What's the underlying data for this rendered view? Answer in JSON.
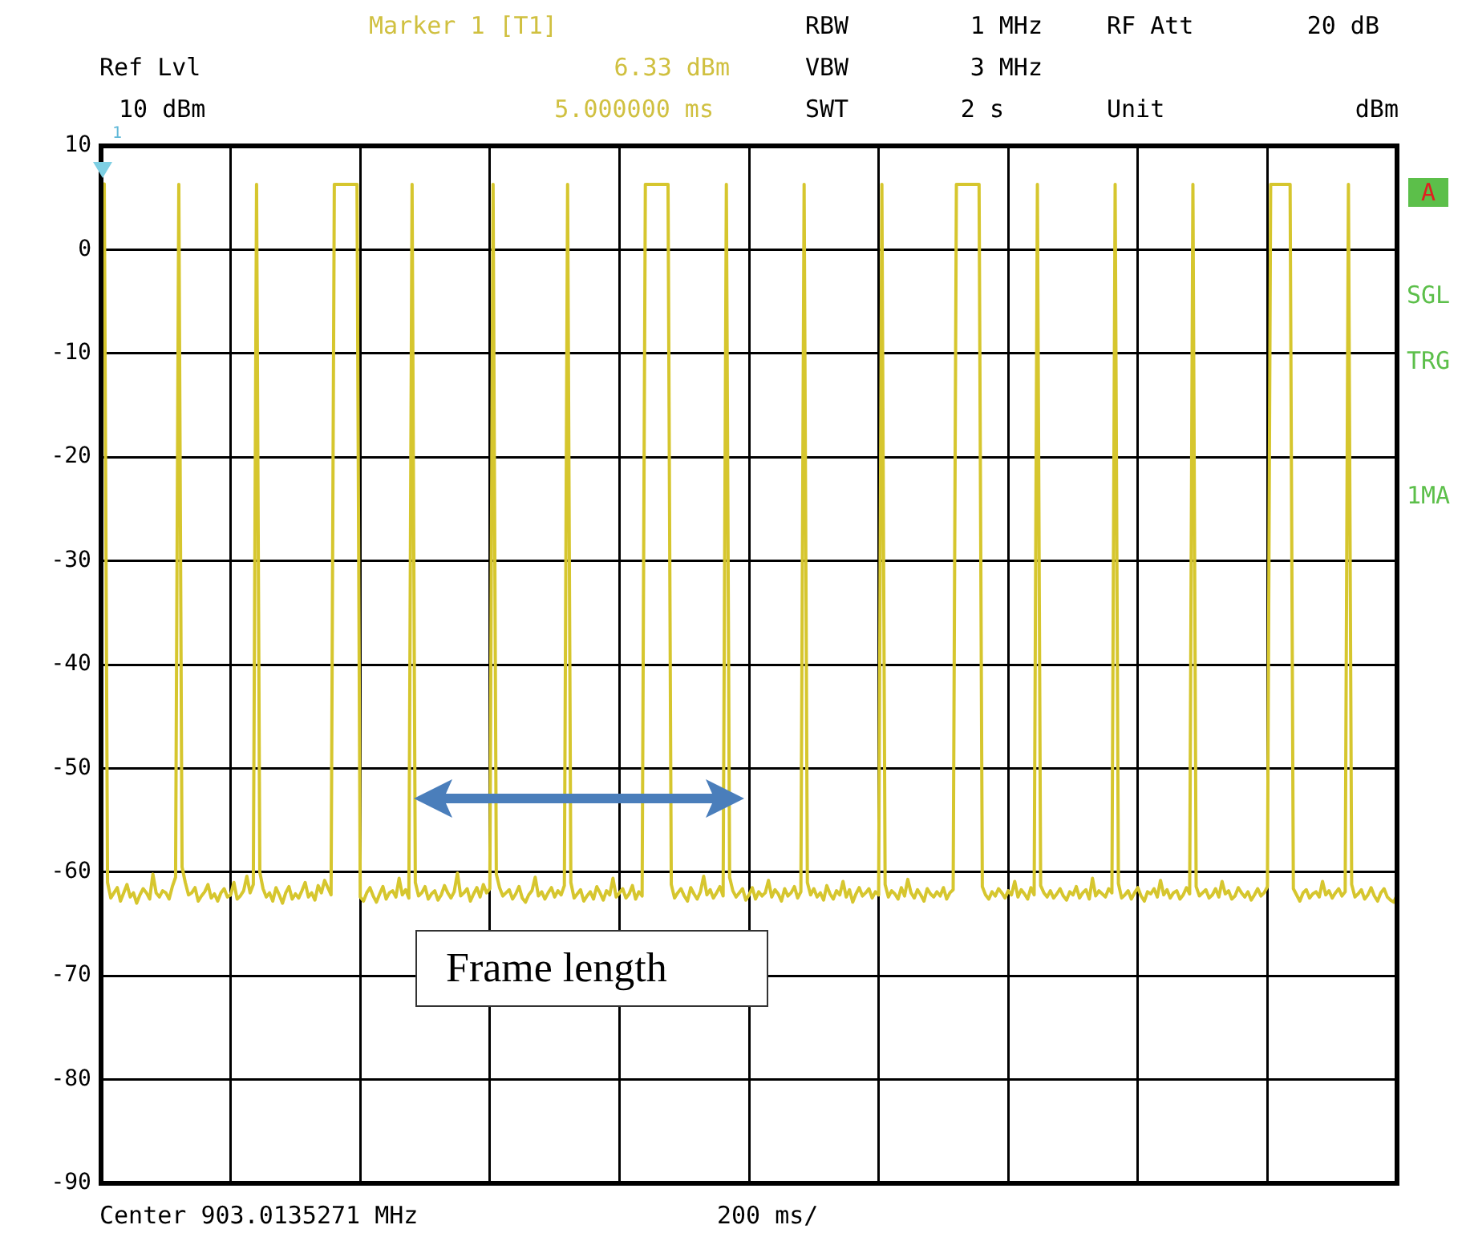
{
  "chart_data": {
    "type": "line",
    "color": "#d6c62e",
    "ylim": [
      -90,
      10
    ],
    "yticks": [
      10,
      0,
      -10,
      -20,
      -30,
      -40,
      -50,
      -60,
      -70,
      -80,
      -90
    ],
    "grid": true,
    "legend": false,
    "marker": "none",
    "line_style": "solid",
    "tick_labels": "y",
    "annotations": [
      "Marker 1 [T1]",
      "6.33 dBm",
      "5.000000 ms",
      "Ref Lvl",
      "10 dBm",
      "RBW",
      "1 MHz",
      "VBW",
      "3 MHz",
      "SWT",
      "2 s",
      "RF Att",
      "20 dB",
      "Unit",
      "dBm",
      "A",
      "SGL",
      "TRG",
      "1MA",
      "Center 903.0135271 MHz",
      "200 ms/",
      "Frame length",
      "1"
    ],
    "categories": [
      null,
      null,
      null,
      null,
      null,
      null,
      null,
      null,
      null,
      null,
      null,
      null,
      null,
      null,
      null,
      null,
      null,
      null,
      null,
      null,
      null,
      null,
      null,
      null,
      null,
      null,
      null,
      null,
      null,
      null,
      null,
      null,
      null,
      null,
      null,
      null,
      null,
      null,
      null,
      null,
      null,
      null,
      null,
      null,
      null,
      null,
      null,
      null,
      null,
      null,
      null,
      null,
      null,
      null,
      null,
      null,
      null,
      null,
      null,
      null,
      null,
      null,
      null,
      null,
      null,
      null,
      null,
      null,
      null,
      null,
      null,
      null,
      null,
      null,
      null,
      null,
      null,
      null,
      null,
      null,
      null,
      null,
      null,
      null,
      null,
      null,
      null,
      null,
      null,
      null,
      null,
      null,
      null,
      null,
      null,
      null,
      null,
      null,
      null,
      null,
      null,
      null,
      null,
      null,
      null,
      null,
      null,
      null,
      null,
      null,
      null,
      null,
      null,
      null,
      null,
      null,
      null,
      null,
      null,
      null,
      null,
      null,
      null,
      null,
      null,
      null,
      null,
      null,
      null,
      null,
      null,
      null,
      null,
      null,
      null,
      null,
      null,
      null,
      null,
      null,
      null,
      null,
      null,
      null,
      null,
      null,
      null,
      null,
      null,
      null,
      null,
      null,
      null,
      null,
      null,
      null,
      null,
      null,
      null,
      null,
      null,
      null,
      null,
      null,
      null,
      null,
      null,
      null,
      null,
      null,
      null,
      null,
      null,
      null,
      null,
      null,
      null,
      null,
      null,
      null,
      null,
      null,
      null,
      null,
      null,
      null,
      null,
      null,
      null,
      null,
      null,
      null,
      null,
      null,
      null,
      null,
      null,
      null,
      null,
      null,
      null,
      null,
      null,
      null,
      null,
      null,
      null,
      null,
      null,
      null,
      null,
      null,
      null,
      null,
      null,
      null,
      null,
      null,
      null,
      null,
      null,
      null,
      null,
      null,
      null,
      null,
      null,
      null,
      null,
      null,
      null,
      null,
      null,
      null,
      null,
      null,
      null,
      null,
      null,
      null,
      null,
      null,
      null,
      null,
      null,
      null,
      null,
      null,
      null,
      null,
      null,
      null,
      null,
      null,
      null,
      null,
      null,
      null,
      null,
      null,
      null,
      null,
      null,
      null,
      null,
      null,
      null,
      null,
      null,
      null,
      null,
      null,
      null,
      null,
      null,
      null,
      null,
      null,
      null,
      null,
      null,
      null,
      null,
      null,
      null,
      null,
      null,
      null,
      null,
      null,
      null,
      null,
      null,
      null,
      null,
      null,
      null,
      null,
      null,
      null,
      null,
      null,
      null,
      null,
      null,
      null,
      null,
      null,
      null,
      null,
      null,
      null,
      null,
      null,
      null,
      null,
      null,
      null,
      null,
      null,
      null,
      null,
      null,
      null,
      null,
      null,
      null,
      null,
      null,
      null,
      null,
      null,
      null,
      null,
      null,
      null,
      null,
      null,
      null,
      null,
      null,
      null,
      null,
      null,
      null,
      null,
      null,
      null,
      null,
      null,
      null,
      null,
      null,
      null,
      null,
      null,
      null,
      null,
      null,
      null,
      null,
      null,
      null,
      null,
      null,
      null,
      null,
      null,
      null,
      null,
      null,
      null,
      null,
      null,
      null,
      null,
      null,
      null,
      null,
      null,
      null,
      null,
      null,
      null,
      null,
      null,
      null,
      null,
      null,
      null,
      null,
      null,
      null,
      null,
      null,
      null,
      null,
      null,
      null,
      null,
      null
    ],
    "values": [
      6.3,
      6.33,
      -61,
      -62.5,
      -62,
      -61.5,
      -62.8,
      -62,
      -61.2,
      -62.4,
      -62,
      -63,
      -62.2,
      -61.6,
      -62,
      -62.6,
      -60.2,
      -62,
      -62.4,
      -61.8,
      -62,
      -62.6,
      -61.4,
      -60.5,
      6.3,
      -59.5,
      -61,
      -62.2,
      -62,
      -61.5,
      -62.8,
      -62.3,
      -61.9,
      -61.2,
      -62.5,
      -62.1,
      -62.8,
      -62,
      -61.6,
      -62.4,
      -62.2,
      -61,
      -62.6,
      -62.3,
      -61.8,
      -60.4,
      -62,
      -61.2,
      6.3,
      -60,
      -61.6,
      -62.4,
      -62,
      -62.8,
      -61.5,
      -62.2,
      -63,
      -62,
      -61.4,
      -62.6,
      -62.1,
      -62.5,
      -61.8,
      -61,
      -62.4,
      -62,
      -62.7,
      -61.3,
      -62,
      -60.8,
      -61.5,
      -62.2,
      6.3,
      6.3,
      6.3,
      6.3,
      6.3,
      6.3,
      6.3,
      6.3,
      -62.4,
      -62.8,
      -62,
      -61.5,
      -62.3,
      -62.9,
      -62.1,
      -61.4,
      -62.6,
      -62,
      -61.8,
      -62.4,
      -60.6,
      -62.2,
      -61.7,
      -62.5,
      6.3,
      -61,
      -62.3,
      -62,
      -61.4,
      -62.6,
      -62.1,
      -61.8,
      -62.7,
      -62.2,
      -61.3,
      -62,
      -62.5,
      -61.9,
      -60.1,
      -62.3,
      -62,
      -61.6,
      -62.8,
      -62.1,
      -61.5,
      -62.4,
      -61.2,
      -62,
      -61.6,
      6.3,
      -60.2,
      -61.5,
      -62.3,
      -62,
      -61.7,
      -62.6,
      -62.1,
      -61.4,
      -62.5,
      -62.9,
      -62.2,
      -61.8,
      -60.5,
      -62.3,
      -61.9,
      -62.6,
      -62,
      -61.5,
      -62.4,
      -61.8,
      -62.2,
      -61.3,
      6.3,
      -61,
      -62.5,
      -62.1,
      -61.7,
      -62.8,
      -62.3,
      -61.9,
      -62.6,
      -61.4,
      -62,
      -62.7,
      -61.8,
      -62.2,
      -60.6,
      -62.4,
      -62,
      -61.6,
      -62.5,
      -62.1,
      -61.3,
      -62.6,
      -61.9,
      -62.3,
      6.3,
      6.3,
      6.3,
      6.3,
      6.3,
      6.3,
      6.3,
      6.3,
      -61.2,
      -62.5,
      -62,
      -61.6,
      -62.3,
      -62.8,
      -61.5,
      -62.1,
      -62.6,
      -61.9,
      -60.4,
      -62.2,
      -61.7,
      -62.5,
      -62,
      -61.4,
      -62.3,
      6.3,
      -60.5,
      -61.8,
      -62.4,
      -62,
      -61.6,
      -62.7,
      -62.2,
      -61.5,
      -62.6,
      -61.9,
      -62.3,
      -62,
      -60.8,
      -62.4,
      -61.7,
      -62.1,
      -62.8,
      -61.6,
      -62.3,
      -62,
      -61.4,
      -62.5,
      -61.9,
      6.3,
      -61,
      -62.2,
      -61.6,
      -62.4,
      -62,
      -62.7,
      -61.3,
      -62.1,
      -62.6,
      -61.8,
      -62.2,
      -60.9,
      -62.4,
      -61.7,
      -62.9,
      -62.1,
      -61.5,
      -62.3,
      -62,
      -61.6,
      -62.5,
      -61.9,
      -62.2,
      6.3,
      -61.2,
      -62.4,
      -61.8,
      -62.1,
      -62.6,
      -61.5,
      -62.3,
      -60.7,
      -62,
      -62.5,
      -61.7,
      -62.2,
      -62.8,
      -61.6,
      -62.1,
      -62.4,
      -61.9,
      -62.3,
      -61.5,
      -62.6,
      -62,
      -61.7,
      6.3,
      6.3,
      6.3,
      6.3,
      6.3,
      6.3,
      6.3,
      6.3,
      -61.4,
      -62.2,
      -62.6,
      -61.9,
      -62.3,
      -61.6,
      -62,
      -62.5,
      -61.8,
      -62.2,
      -60.9,
      -62.4,
      -61.7,
      -62.1,
      -62.6,
      -61.5,
      -62.2,
      6.3,
      -61.3,
      -62,
      -62.4,
      -61.8,
      -62.5,
      -62.1,
      -61.6,
      -62.3,
      -62.7,
      -61.9,
      -62.2,
      -61.4,
      -62.5,
      -62,
      -61.7,
      -62.6,
      -60.6,
      -62.3,
      -61.8,
      -62.1,
      -62.4,
      -61.6,
      -62,
      6.3,
      -61.1,
      -62.5,
      -62.2,
      -61.8,
      -62.6,
      -62,
      -61.5,
      -62.3,
      -62.8,
      -61.9,
      -62.1,
      -61.6,
      -62.4,
      -60.8,
      -62.2,
      -61.7,
      -62.5,
      -62,
      -61.8,
      -62.6,
      -62.2,
      -61.5,
      -62.1,
      6.3,
      -61.4,
      -62.3,
      -62,
      -61.7,
      -62.5,
      -62.2,
      -61.6,
      -62.4,
      -60.9,
      -62.1,
      -61.8,
      -62.6,
      -62.3,
      -61.5,
      -62,
      -62.4,
      -61.9,
      -62.7,
      -62.2,
      -61.6,
      -62.3,
      -62,
      -61.4,
      6.3,
      6.3,
      6.3,
      6.3,
      6.3,
      6.3,
      6.3,
      -61.6,
      -62.2,
      -62.8,
      -62,
      -61.7,
      -62.5,
      -62.1,
      -61.9,
      -62.4,
      -60.9,
      -62.2,
      -61.8,
      -62.5,
      -62,
      -61.6,
      -62.3,
      -61.9,
      6.3,
      -61.2,
      -62.4,
      -62.1,
      -61.7,
      -62.6,
      -62.2,
      -61.5,
      -62.3,
      -62.8,
      -62,
      -61.6,
      -62.4,
      -62.7,
      -62.9,
      -62.2
    ]
  }
}
